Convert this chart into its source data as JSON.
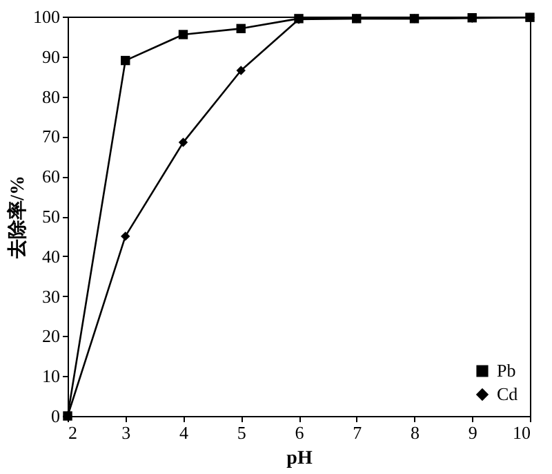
{
  "chart_data": {
    "type": "line",
    "xlabel": "pH",
    "ylabel": "去除率/%",
    "x": [
      2,
      3,
      4,
      5,
      6,
      7,
      8,
      9,
      10
    ],
    "series": [
      {
        "name": "Pb",
        "color": "#000000",
        "marker": "square",
        "values": [
          0,
          89,
          95.5,
          97,
          99.5,
          99.5,
          99.5,
          99.7,
          99.8
        ]
      },
      {
        "name": "Cd",
        "color": "#000000",
        "marker": "diamond",
        "values": [
          0,
          45,
          68.5,
          86.5,
          99.3,
          99.5,
          99.5,
          99.6,
          99.8
        ]
      }
    ],
    "xlim": [
      2,
      10
    ],
    "xticks": [
      2,
      3,
      4,
      5,
      6,
      7,
      8,
      9,
      10
    ],
    "ylim": [
      0,
      100
    ],
    "yticks": [
      0,
      10,
      20,
      30,
      40,
      50,
      60,
      70,
      80,
      90,
      100
    ],
    "grid": false,
    "legend": "bottom right",
    "line_style": "solid"
  }
}
